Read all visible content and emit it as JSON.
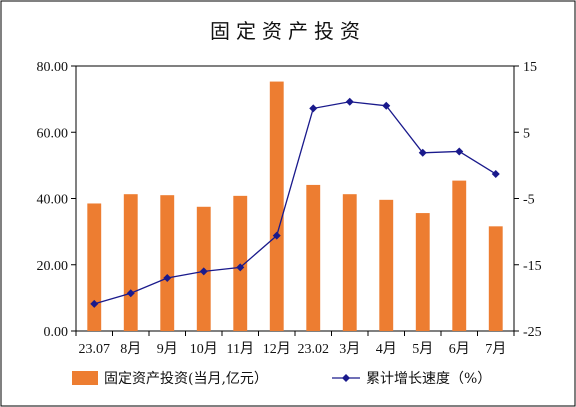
{
  "chart_data": {
    "type": "bar+line",
    "title": "固定资产投资",
    "categories": [
      "23.07",
      "8月",
      "9月",
      "10月",
      "11月",
      "12月",
      "23.02",
      "3月",
      "4月",
      "5月",
      "6月",
      "7月"
    ],
    "series": [
      {
        "name": "固定资产投资(当月,亿元）",
        "type": "bar",
        "axis": "left",
        "color": "#ED7D31",
        "values": [
          38.5,
          41.3,
          41.0,
          37.5,
          40.8,
          75.3,
          44.1,
          41.3,
          39.6,
          35.6,
          45.4,
          31.6
        ]
      },
      {
        "name": "累计增长速度（%",
        "type": "line",
        "axis": "right",
        "color": "#1A1A8C",
        "marker": "diamond",
        "values": [
          -20.9,
          -19.3,
          -17.0,
          -16.0,
          -15.4,
          -10.6,
          8.6,
          9.6,
          9.0,
          1.9,
          2.1,
          -1.3
        ]
      }
    ],
    "y_left": {
      "ylim": [
        0,
        80
      ],
      "ticks": [
        "0.00",
        "20.00",
        "40.00",
        "60.00",
        "80.00"
      ]
    },
    "y_right": {
      "ylim": [
        -25,
        15
      ],
      "ticks": [
        "-25",
        "-15",
        "-5",
        "5",
        "15"
      ]
    },
    "legend": {
      "bar_label": "固定资产投资(当月,亿元）",
      "line_label": "累计增长速度（%）"
    },
    "legend_position": "bottom",
    "grid": false
  }
}
